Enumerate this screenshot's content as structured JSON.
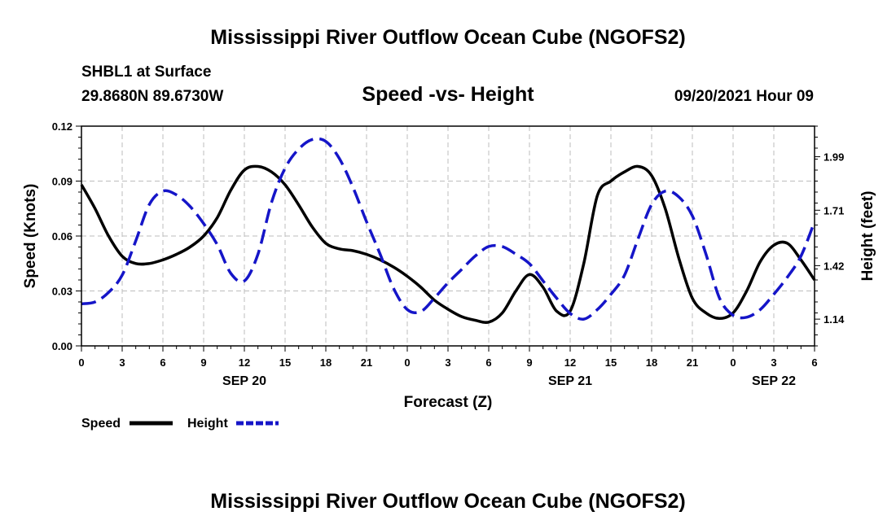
{
  "header": {
    "title_top": "Mississippi River Outflow Ocean Cube (NGOFS2)",
    "station": "SHBL1 at Surface",
    "coords": "29.8680N  89.6730W",
    "datetime": "09/20/2021 Hour 09",
    "title_bottom": "Mississippi River Outflow Ocean Cube (NGOFS2)"
  },
  "legend": {
    "speed_label": "Speed",
    "height_label": "Height"
  },
  "colors": {
    "speed": "#000000",
    "height": "#1515c8",
    "grid": "#bdbdbd"
  },
  "chart_data": {
    "type": "line",
    "title": "Speed -vs- Height",
    "xlabel": "Forecast (Z)",
    "ylabel": "Speed (Knots)",
    "y2label": "Height (feet)",
    "xlim": [
      0,
      54
    ],
    "ylim": [
      0,
      0.12
    ],
    "y2lim": [
      1.0,
      2.15
    ],
    "x_ticks": [
      {
        "x": 0,
        "label": "0"
      },
      {
        "x": 3,
        "label": "3"
      },
      {
        "x": 6,
        "label": "6"
      },
      {
        "x": 9,
        "label": "9"
      },
      {
        "x": 12,
        "label": "12"
      },
      {
        "x": 15,
        "label": "15"
      },
      {
        "x": 18,
        "label": "18"
      },
      {
        "x": 21,
        "label": "21"
      },
      {
        "x": 24,
        "label": "0"
      },
      {
        "x": 27,
        "label": "3"
      },
      {
        "x": 30,
        "label": "6"
      },
      {
        "x": 33,
        "label": "9"
      },
      {
        "x": 36,
        "label": "12"
      },
      {
        "x": 39,
        "label": "15"
      },
      {
        "x": 42,
        "label": "18"
      },
      {
        "x": 45,
        "label": "21"
      },
      {
        "x": 48,
        "label": "0"
      },
      {
        "x": 51,
        "label": "3"
      },
      {
        "x": 54,
        "label": "6"
      }
    ],
    "date_labels": [
      {
        "x": 12,
        "label": "SEP 20"
      },
      {
        "x": 36,
        "label": "SEP 21"
      },
      {
        "x": 51,
        "label": "SEP 22"
      }
    ],
    "y_ticks": [
      {
        "y": 0.0,
        "label": "0.00"
      },
      {
        "y": 0.03,
        "label": "0.03"
      },
      {
        "y": 0.06,
        "label": "0.06"
      },
      {
        "y": 0.09,
        "label": "0.09"
      },
      {
        "y": 0.12,
        "label": "0.12"
      }
    ],
    "y2_ticks": [
      {
        "y": 1.14,
        "label": "1.14"
      },
      {
        "y": 1.42,
        "label": "1.42"
      },
      {
        "y": 1.71,
        "label": "1.71"
      },
      {
        "y": 1.99,
        "label": "1.99"
      }
    ],
    "series": [
      {
        "name": "Speed",
        "axis": "left",
        "style": "solid",
        "points": [
          [
            0,
            0.088
          ],
          [
            1,
            0.075
          ],
          [
            2,
            0.06
          ],
          [
            3,
            0.049
          ],
          [
            4,
            0.045
          ],
          [
            5,
            0.045
          ],
          [
            6,
            0.047
          ],
          [
            7,
            0.05
          ],
          [
            8,
            0.054
          ],
          [
            9,
            0.06
          ],
          [
            10,
            0.07
          ],
          [
            11,
            0.085
          ],
          [
            12,
            0.096
          ],
          [
            13,
            0.098
          ],
          [
            14,
            0.095
          ],
          [
            15,
            0.088
          ],
          [
            16,
            0.077
          ],
          [
            17,
            0.065
          ],
          [
            18,
            0.056
          ],
          [
            19,
            0.053
          ],
          [
            20,
            0.052
          ],
          [
            21,
            0.05
          ],
          [
            22,
            0.047
          ],
          [
            23,
            0.043
          ],
          [
            24,
            0.038
          ],
          [
            25,
            0.032
          ],
          [
            26,
            0.025
          ],
          [
            27,
            0.02
          ],
          [
            28,
            0.016
          ],
          [
            29,
            0.014
          ],
          [
            30,
            0.013
          ],
          [
            31,
            0.018
          ],
          [
            32,
            0.03
          ],
          [
            33,
            0.039
          ],
          [
            34,
            0.032
          ],
          [
            35,
            0.019
          ],
          [
            36,
            0.019
          ],
          [
            37,
            0.045
          ],
          [
            38,
            0.082
          ],
          [
            39,
            0.09
          ],
          [
            40,
            0.095
          ],
          [
            41,
            0.098
          ],
          [
            42,
            0.093
          ],
          [
            43,
            0.075
          ],
          [
            44,
            0.048
          ],
          [
            45,
            0.026
          ],
          [
            46,
            0.018
          ],
          [
            47,
            0.015
          ],
          [
            48,
            0.018
          ],
          [
            49,
            0.03
          ],
          [
            50,
            0.046
          ],
          [
            51,
            0.055
          ],
          [
            52,
            0.056
          ],
          [
            53,
            0.047
          ],
          [
            54,
            0.036
          ]
        ]
      },
      {
        "name": "Height",
        "axis": "right",
        "style": "dashed",
        "points": [
          [
            0,
            1.22
          ],
          [
            1,
            1.23
          ],
          [
            2,
            1.28
          ],
          [
            3,
            1.37
          ],
          [
            4,
            1.55
          ],
          [
            5,
            1.74
          ],
          [
            6,
            1.81
          ],
          [
            7,
            1.79
          ],
          [
            8,
            1.73
          ],
          [
            9,
            1.64
          ],
          [
            10,
            1.53
          ],
          [
            11,
            1.38
          ],
          [
            12,
            1.34
          ],
          [
            13,
            1.48
          ],
          [
            14,
            1.75
          ],
          [
            15,
            1.93
          ],
          [
            16,
            2.03
          ],
          [
            17,
            2.08
          ],
          [
            18,
            2.07
          ],
          [
            19,
            1.98
          ],
          [
            20,
            1.83
          ],
          [
            21,
            1.65
          ],
          [
            22,
            1.48
          ],
          [
            23,
            1.3
          ],
          [
            24,
            1.19
          ],
          [
            25,
            1.18
          ],
          [
            26,
            1.25
          ],
          [
            27,
            1.33
          ],
          [
            28,
            1.4
          ],
          [
            29,
            1.47
          ],
          [
            30,
            1.52
          ],
          [
            31,
            1.52
          ],
          [
            32,
            1.48
          ],
          [
            33,
            1.43
          ],
          [
            34,
            1.34
          ],
          [
            35,
            1.25
          ],
          [
            36,
            1.17
          ],
          [
            37,
            1.14
          ],
          [
            38,
            1.19
          ],
          [
            39,
            1.27
          ],
          [
            40,
            1.37
          ],
          [
            41,
            1.56
          ],
          [
            42,
            1.74
          ],
          [
            43,
            1.81
          ],
          [
            44,
            1.78
          ],
          [
            45,
            1.68
          ],
          [
            46,
            1.48
          ],
          [
            47,
            1.25
          ],
          [
            48,
            1.16
          ],
          [
            49,
            1.15
          ],
          [
            50,
            1.19
          ],
          [
            51,
            1.27
          ],
          [
            52,
            1.36
          ],
          [
            53,
            1.47
          ],
          [
            54,
            1.65
          ]
        ]
      }
    ]
  }
}
